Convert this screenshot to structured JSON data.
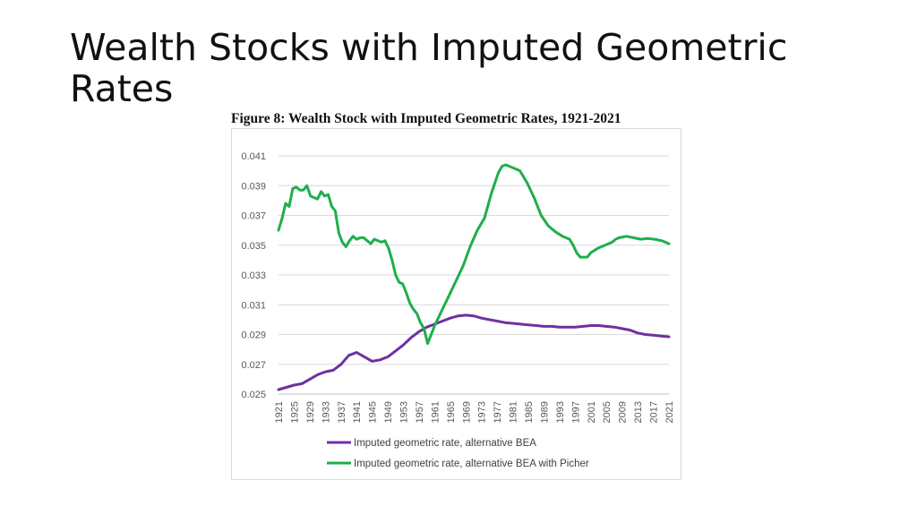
{
  "slide": {
    "title": "Wealth Stocks with Imputed Geometric Rates"
  },
  "figure": {
    "caption": "Figure 8: Wealth Stock with Imputed Geometric Rates, 1921-2021"
  },
  "chart_data": {
    "type": "line",
    "title": "Figure 8: Wealth Stock with Imputed Geometric Rates, 1921-2021",
    "xlabel": "",
    "ylabel": "",
    "ylim": [
      0.025,
      0.041
    ],
    "y_ticks": [
      "0.041",
      "0.039",
      "0.037",
      "0.035",
      "0.033",
      "0.031",
      "0.029",
      "0.027",
      "0.025"
    ],
    "x_tick_labels": [
      "1921",
      "1925",
      "1929",
      "1933",
      "1937",
      "1941",
      "1945",
      "1949",
      "1953",
      "1957",
      "1961",
      "1965",
      "1969",
      "1973",
      "1977",
      "1981",
      "1985",
      "1989",
      "1993",
      "1997",
      "2001",
      "2005",
      "2009",
      "2013",
      "2017",
      "2021"
    ],
    "grid": "horizontal",
    "legend_position": "bottom",
    "series": [
      {
        "name": "Imputed geometric rate, alternative BEA",
        "color": "#7030a0",
        "points": [
          [
            1921,
            0.0253
          ],
          [
            1923,
            0.02545
          ],
          [
            1925,
            0.0256
          ],
          [
            1927,
            0.0257
          ],
          [
            1929,
            0.026
          ],
          [
            1931,
            0.0263
          ],
          [
            1933,
            0.0265
          ],
          [
            1935,
            0.0266
          ],
          [
            1937,
            0.027
          ],
          [
            1939,
            0.0276
          ],
          [
            1941,
            0.0278
          ],
          [
            1943,
            0.0275
          ],
          [
            1945,
            0.0272
          ],
          [
            1947,
            0.0273
          ],
          [
            1949,
            0.0275
          ],
          [
            1951,
            0.0279
          ],
          [
            1953,
            0.0283
          ],
          [
            1955,
            0.0288
          ],
          [
            1957,
            0.0292
          ],
          [
            1959,
            0.0295
          ],
          [
            1961,
            0.0297
          ],
          [
            1963,
            0.0299
          ],
          [
            1965,
            0.0301
          ],
          [
            1967,
            0.03025
          ],
          [
            1969,
            0.0303
          ],
          [
            1971,
            0.03025
          ],
          [
            1973,
            0.0301
          ],
          [
            1975,
            0.03
          ],
          [
            1977,
            0.0299
          ],
          [
            1979,
            0.0298
          ],
          [
            1981,
            0.02975
          ],
          [
            1983,
            0.0297
          ],
          [
            1985,
            0.02965
          ],
          [
            1987,
            0.0296
          ],
          [
            1989,
            0.02955
          ],
          [
            1991,
            0.02955
          ],
          [
            1993,
            0.0295
          ],
          [
            1995,
            0.0295
          ],
          [
            1997,
            0.0295
          ],
          [
            1999,
            0.02955
          ],
          [
            2001,
            0.0296
          ],
          [
            2003,
            0.0296
          ],
          [
            2005,
            0.02955
          ],
          [
            2007,
            0.0295
          ],
          [
            2009,
            0.0294
          ],
          [
            2011,
            0.0293
          ],
          [
            2013,
            0.0291
          ],
          [
            2015,
            0.029
          ],
          [
            2017,
            0.02895
          ],
          [
            2019,
            0.0289
          ],
          [
            2021,
            0.02885
          ]
        ]
      },
      {
        "name": "Imputed geometric rate, alternative BEA with Picher",
        "color": "#1fae4b",
        "points": [
          [
            1921,
            0.036
          ],
          [
            1922,
            0.0368
          ],
          [
            1923,
            0.0378
          ],
          [
            1924,
            0.0376
          ],
          [
            1925,
            0.0388
          ],
          [
            1926,
            0.0389
          ],
          [
            1927,
            0.0387
          ],
          [
            1928,
            0.0387
          ],
          [
            1929,
            0.039
          ],
          [
            1930,
            0.0383
          ],
          [
            1931,
            0.0382
          ],
          [
            1932,
            0.0381
          ],
          [
            1933,
            0.0386
          ],
          [
            1934,
            0.0383
          ],
          [
            1935,
            0.0384
          ],
          [
            1936,
            0.0376
          ],
          [
            1937,
            0.0373
          ],
          [
            1938,
            0.0358
          ],
          [
            1939,
            0.0352
          ],
          [
            1940,
            0.0349
          ],
          [
            1941,
            0.0353
          ],
          [
            1942,
            0.0356
          ],
          [
            1943,
            0.0354
          ],
          [
            1944,
            0.0355
          ],
          [
            1945,
            0.0355
          ],
          [
            1946,
            0.0353
          ],
          [
            1947,
            0.0351
          ],
          [
            1948,
            0.0354
          ],
          [
            1949,
            0.0353
          ],
          [
            1950,
            0.0352
          ],
          [
            1951,
            0.0353
          ],
          [
            1952,
            0.0348
          ],
          [
            1953,
            0.034
          ],
          [
            1954,
            0.033
          ],
          [
            1955,
            0.0325
          ],
          [
            1956,
            0.0324
          ],
          [
            1957,
            0.0318
          ],
          [
            1958,
            0.0311
          ],
          [
            1959,
            0.0307
          ],
          [
            1960,
            0.0304
          ],
          [
            1961,
            0.0298
          ],
          [
            1962,
            0.0294
          ],
          [
            1963,
            0.0284
          ],
          [
            1965,
            0.0296
          ],
          [
            1967,
            0.0306
          ],
          [
            1969,
            0.0316
          ],
          [
            1971,
            0.0326
          ],
          [
            1973,
            0.0336
          ],
          [
            1975,
            0.0349
          ],
          [
            1977,
            0.036
          ],
          [
            1979,
            0.0368
          ],
          [
            1981,
            0.0385
          ],
          [
            1983,
            0.0399
          ],
          [
            1984,
            0.0403
          ],
          [
            1985,
            0.0404
          ],
          [
            1987,
            0.0402
          ],
          [
            1989,
            0.04
          ],
          [
            1991,
            0.0392
          ],
          [
            1993,
            0.0382
          ],
          [
            1995,
            0.037
          ],
          [
            1997,
            0.0363
          ],
          [
            1999,
            0.0359
          ],
          [
            2001,
            0.0356
          ],
          [
            2003,
            0.0354
          ],
          [
            2004,
            0.035
          ],
          [
            2005,
            0.0345
          ],
          [
            2006,
            0.0342
          ],
          [
            2007,
            0.0342
          ],
          [
            2008,
            0.0342
          ],
          [
            2009,
            0.0345
          ],
          [
            2011,
            0.0348
          ],
          [
            2013,
            0.035
          ],
          [
            2015,
            0.0352
          ],
          [
            2016,
            0.0354
          ],
          [
            2017,
            0.0355
          ],
          [
            2019,
            0.0356
          ],
          [
            2021,
            0.0355
          ],
          [
            2023,
            0.0354
          ],
          [
            2025,
            0.03545
          ],
          [
            2027,
            0.0354
          ],
          [
            2029,
            0.0353
          ],
          [
            2031,
            0.0351
          ]
        ]
      }
    ]
  }
}
